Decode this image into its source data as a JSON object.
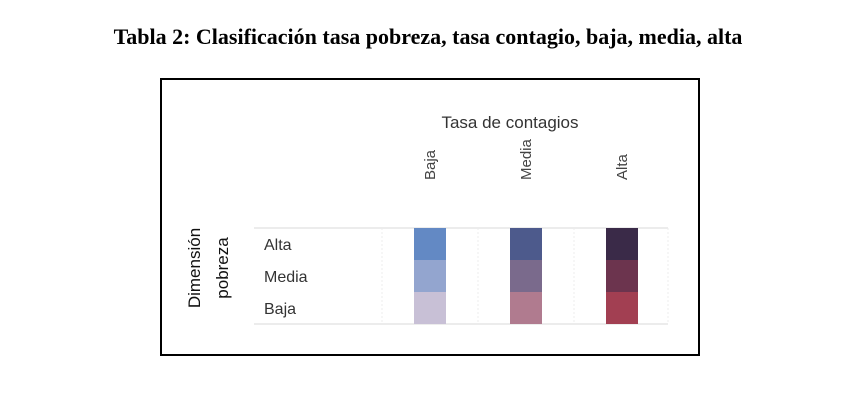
{
  "caption": "Tabla 2: Clasificación tasa pobreza, tasa contagio, baja, media, alta",
  "chart_data": {
    "type": "heatmap",
    "xlabel": "Tasa de contagios",
    "ylabel": "Dimensión pobreza",
    "columns": [
      "Baja",
      "Media",
      "Alta"
    ],
    "rows": [
      "Alta",
      "Media",
      "Baja"
    ],
    "colors": [
      [
        "#6389c4",
        "#4d5a8c",
        "#3a2a48"
      ],
      [
        "#93a5cf",
        "#7a6a8c",
        "#6c344e"
      ],
      [
        "#c8c0d6",
        "#b07b8f",
        "#a23f52"
      ]
    ]
  }
}
